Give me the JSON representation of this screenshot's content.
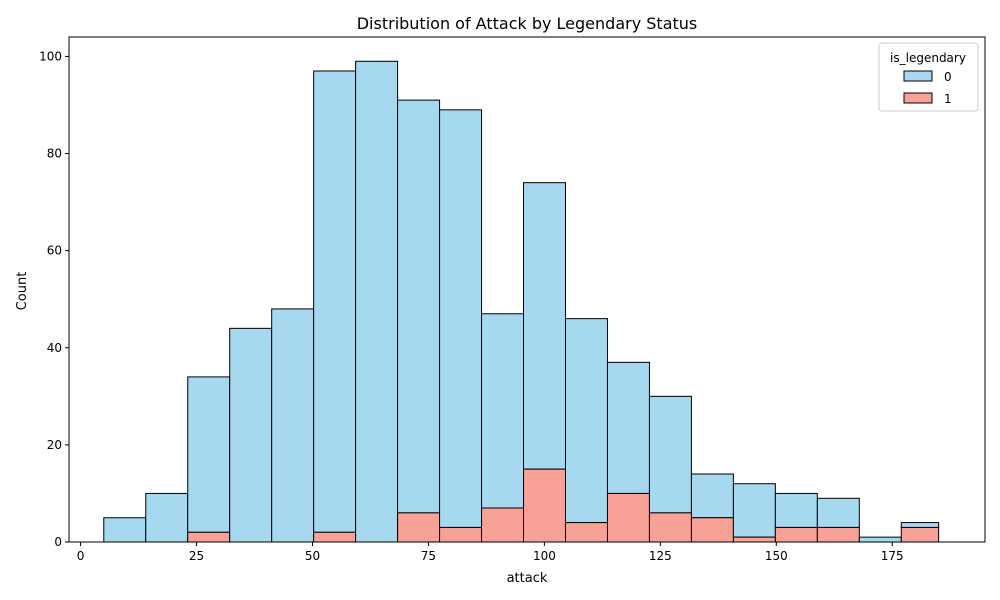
{
  "chart_data": {
    "type": "bar",
    "subtype": "stacked-histogram",
    "title": "Distribution of Attack by Legendary Status",
    "xlabel": "attack",
    "ylabel": "Count",
    "xlim": [
      -2.5,
      195
    ],
    "ylim": [
      0,
      104
    ],
    "xticks": [
      0,
      25,
      50,
      75,
      100,
      125,
      150,
      175
    ],
    "yticks": [
      0,
      20,
      40,
      60,
      80,
      100
    ],
    "grid": false,
    "bin_edges": [
      5,
      14.05,
      23.1,
      32.15,
      41.2,
      50.25,
      59.3,
      68.35,
      77.4,
      86.45,
      95.5,
      104.55,
      113.6,
      122.65,
      131.7,
      140.75,
      149.8,
      158.85,
      167.9,
      176.95,
      185
    ],
    "legend": {
      "title": "is_legendary",
      "position": "top-right"
    },
    "series": [
      {
        "name": "0",
        "color": "#a6d9ef",
        "values": [
          5,
          10,
          32,
          44,
          48,
          95,
          99,
          85,
          86,
          40,
          59,
          42,
          27,
          24,
          9,
          11,
          7,
          6,
          1,
          1
        ]
      },
      {
        "name": "1",
        "color": "#f8a196",
        "values": [
          0,
          0,
          2,
          0,
          0,
          2,
          0,
          6,
          3,
          7,
          15,
          4,
          10,
          6,
          5,
          1,
          3,
          3,
          0,
          3
        ]
      }
    ],
    "stack_order": [
      "1",
      "0"
    ]
  }
}
